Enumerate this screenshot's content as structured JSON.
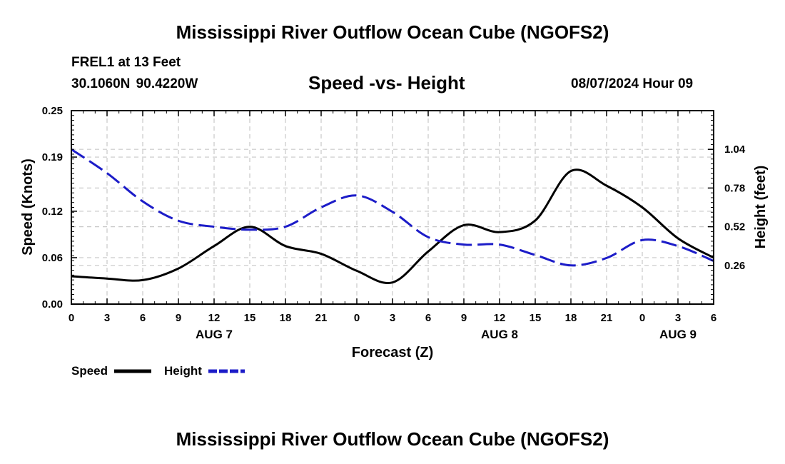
{
  "header": {
    "title": "Mississippi River Outflow Ocean Cube (NGOFS2)",
    "station": "FREL1 at 13 Feet",
    "coords": "30.1060N  90.4220W",
    "subtitle": "Speed -vs- Height",
    "datetime": "08/07/2024 Hour 09"
  },
  "footer": {
    "title": "Mississippi River Outflow Ocean Cube (NGOFS2)"
  },
  "legend": {
    "speed_label": "Speed",
    "height_label": "Height"
  },
  "chart_data": {
    "type": "line",
    "xlabel": "Forecast (Z)",
    "ylabel_left": "Speed (Knots)",
    "ylabel_right": "Height (feet)",
    "xlim": [
      0,
      54
    ],
    "x_ticks": [
      0,
      3,
      6,
      9,
      12,
      15,
      18,
      21,
      24,
      27,
      30,
      33,
      36,
      39,
      42,
      45,
      48,
      51,
      54
    ],
    "x_tick_labels": [
      "0",
      "3",
      "6",
      "9",
      "12",
      "15",
      "18",
      "21",
      "0",
      "3",
      "6",
      "9",
      "12",
      "15",
      "18",
      "21",
      "0",
      "3",
      "6"
    ],
    "date_labels": [
      {
        "x": 12,
        "label": "AUG 7"
      },
      {
        "x": 36,
        "label": "AUG 8"
      },
      {
        "x": 51,
        "label": "AUG 9"
      }
    ],
    "ylim_left": [
      0,
      0.25
    ],
    "y_ticks_left": [
      0.0,
      0.06,
      0.12,
      0.19,
      0.25
    ],
    "y_tick_labels_left": [
      "0.00",
      "0.06",
      "0.12",
      "0.19",
      "0.25"
    ],
    "ylim_right": [
      0.0,
      1.3
    ],
    "y_ticks_right": [
      0.26,
      0.52,
      0.78,
      1.04
    ],
    "y_tick_labels_right": [
      "0.26",
      "0.52",
      "0.78",
      "1.04"
    ],
    "grid": true,
    "series": [
      {
        "name": "Speed",
        "axis": "left",
        "color": "#000000",
        "dash": "solid",
        "x": [
          0,
          3,
          6,
          9,
          12,
          15,
          18,
          21,
          24,
          27,
          30,
          33,
          36,
          39,
          42,
          45,
          48,
          51,
          54
        ],
        "values": [
          0.036,
          0.033,
          0.031,
          0.046,
          0.075,
          0.1,
          0.075,
          0.065,
          0.043,
          0.028,
          0.068,
          0.102,
          0.093,
          0.108,
          0.172,
          0.153,
          0.125,
          0.085,
          0.06
        ]
      },
      {
        "name": "Height",
        "axis": "right",
        "color": "#1c1cc8",
        "dash": "dashed",
        "x": [
          0,
          3,
          6,
          9,
          12,
          15,
          18,
          21,
          24,
          27,
          30,
          33,
          36,
          39,
          42,
          45,
          48,
          51,
          54
        ],
        "values": [
          1.04,
          0.88,
          0.69,
          0.56,
          0.52,
          0.5,
          0.52,
          0.65,
          0.73,
          0.62,
          0.45,
          0.4,
          0.4,
          0.33,
          0.26,
          0.31,
          0.43,
          0.39,
          0.29
        ]
      }
    ]
  }
}
